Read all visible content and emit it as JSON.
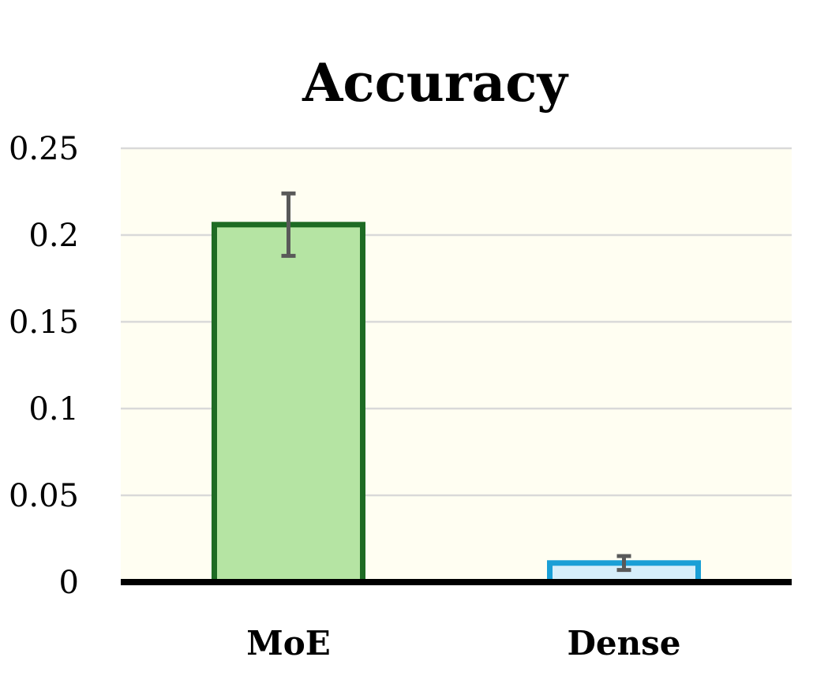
{
  "colors": {
    "plot_background": "#fffef2",
    "grid": "#d9d9d9",
    "baseline": "#000000",
    "error_bar": "#595959"
  },
  "chart_data": {
    "type": "bar",
    "title": "Accuracy",
    "xlabel": "",
    "ylabel": "",
    "categories": [
      "MoE",
      "Dense"
    ],
    "values": [
      0.206,
      0.011
    ],
    "errors": [
      0.018,
      0.004
    ],
    "bar_fill_colors": [
      "#b5e4a3",
      "#d6eefa"
    ],
    "bar_edge_colors": [
      "#1e6b24",
      "#1a9fd6"
    ],
    "ylim": [
      0,
      0.25
    ],
    "yticks": [
      0,
      0.05,
      0.1,
      0.15,
      0.2,
      0.25
    ],
    "ytick_labels": [
      "0",
      "0.05",
      "0.1",
      "0.15",
      "0.2",
      "0.25"
    ],
    "grid": true,
    "legend": false
  }
}
